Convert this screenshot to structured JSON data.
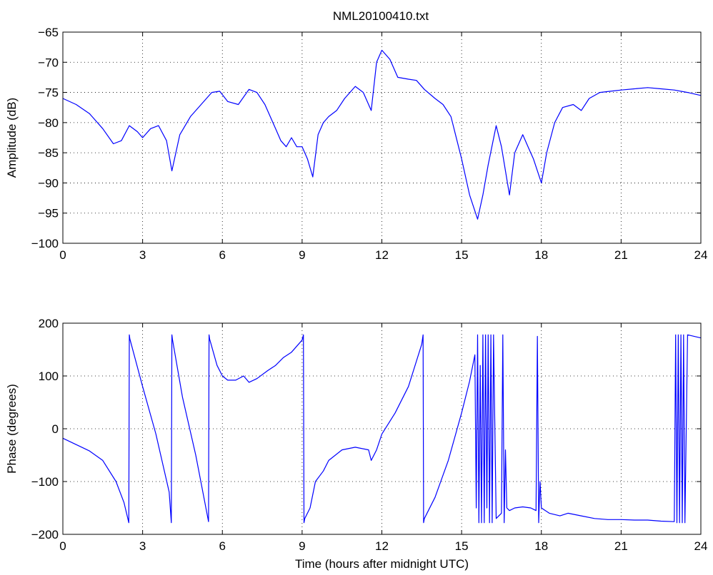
{
  "chart_data": [
    {
      "type": "line",
      "title": "NML20100410.txt",
      "xlabel": "",
      "ylabel": "Amplitude (dB)",
      "xlim": [
        0,
        24
      ],
      "ylim": [
        -100,
        -65
      ],
      "xticks": [
        "0",
        "3",
        "6",
        "9",
        "12",
        "15",
        "18",
        "21",
        "24"
      ],
      "yticks": [
        "-100",
        "-95",
        "-90",
        "-85",
        "-80",
        "-75",
        "-70",
        "-65"
      ],
      "grid": true,
      "line_color": "#0000ff",
      "series": [
        {
          "x": [
            0,
            0.5,
            1.0,
            1.5,
            1.9,
            2.2,
            2.5,
            2.8,
            3.0,
            3.3,
            3.6,
            3.9,
            4.1,
            4.4,
            4.8,
            5.2,
            5.6,
            5.9,
            6.2,
            6.6,
            7.0,
            7.3,
            7.6,
            8.0,
            8.2,
            8.4,
            8.6,
            8.8,
            9.0,
            9.2,
            9.4,
            9.6,
            9.8,
            10.0,
            10.3,
            10.6,
            11.0,
            11.3,
            11.6,
            11.8,
            12.0,
            12.3,
            12.6,
            13.0,
            13.3,
            13.6,
            14.0,
            14.3,
            14.6,
            15.0,
            15.3,
            15.6,
            15.8,
            16.0,
            16.3,
            16.5,
            16.8,
            17.0,
            17.3,
            17.5,
            17.7,
            18.0,
            18.2,
            18.5,
            18.8,
            19.2,
            19.5,
            19.8,
            20.2,
            20.6,
            21.0,
            21.5,
            22.0,
            22.5,
            23.0,
            23.5,
            24.0
          ],
          "y": [
            -76,
            -77,
            -78.5,
            -81,
            -83.5,
            -83,
            -80.5,
            -81.5,
            -82.5,
            -81,
            -80.5,
            -83,
            -88,
            -82,
            -79,
            -77,
            -75,
            -74.8,
            -76.5,
            -77,
            -74.5,
            -75,
            -77,
            -81,
            -83,
            -84,
            -82.5,
            -84,
            -84,
            -86,
            -89,
            -82,
            -80,
            -79,
            -78,
            -76,
            -74,
            -75,
            -78,
            -70,
            -68,
            -69.5,
            -72.5,
            -72.8,
            -73,
            -74.5,
            -76,
            -77,
            -79,
            -86,
            -92,
            -96,
            -92,
            -87,
            -80.5,
            -84,
            -92,
            -85,
            -82,
            -84,
            -86,
            -90,
            -85,
            -80,
            -77.5,
            -77,
            -78,
            -76,
            -75,
            -74.8,
            -74.6,
            -74.4,
            -74.2,
            -74.4,
            -74.6,
            -75,
            -75.5
          ]
        }
      ]
    },
    {
      "type": "line",
      "title": "",
      "xlabel": "Time (hours after midnight UTC)",
      "ylabel": "Phase (degrees)",
      "xlim": [
        0,
        24
      ],
      "ylim": [
        -200,
        200
      ],
      "xticks": [
        "0",
        "3",
        "6",
        "9",
        "12",
        "15",
        "18",
        "21",
        "24"
      ],
      "yticks": [
        "-200",
        "-100",
        "0",
        "100",
        "200"
      ],
      "grid": true,
      "line_color": "#0000ff",
      "series": [
        {
          "x": [
            0,
            0.5,
            1.0,
            1.5,
            2.0,
            2.3,
            2.48,
            2.5,
            2.52,
            3.0,
            3.5,
            4.0,
            4.08,
            4.1,
            4.12,
            4.5,
            5.0,
            5.48,
            5.5,
            5.52,
            5.8,
            6.0,
            6.2,
            6.5,
            6.8,
            7.0,
            7.3,
            7.7,
            8.0,
            8.3,
            8.6,
            9.0,
            9.05,
            9.07,
            9.1,
            9.3,
            9.5,
            9.8,
            10.0,
            10.5,
            11.0,
            11.5,
            11.6,
            11.8,
            12.0,
            12.5,
            13.0,
            13.5,
            13.55,
            13.57,
            13.6,
            14.0,
            14.5,
            15.0,
            15.3,
            15.5,
            15.55,
            15.6,
            15.65,
            15.7,
            15.75,
            15.8,
            15.85,
            15.9,
            15.95,
            16.0,
            16.05,
            16.1,
            16.15,
            16.2,
            16.3,
            16.4,
            16.5,
            16.55,
            16.6,
            16.65,
            16.7,
            16.8,
            17.0,
            17.3,
            17.6,
            17.8,
            17.85,
            17.9,
            17.95,
            18.0,
            18.3,
            18.7,
            19.0,
            19.5,
            20.0,
            20.5,
            21.0,
            21.5,
            22.0,
            22.5,
            23.0,
            23.05,
            23.1,
            23.15,
            23.2,
            23.25,
            23.3,
            23.35,
            23.4,
            23.5,
            24.0
          ],
          "y": [
            -18,
            -30,
            -42,
            -60,
            -100,
            -140,
            -178,
            178,
            170,
            80,
            -10,
            -120,
            -178,
            178,
            170,
            60,
            -50,
            -176,
            178,
            170,
            120,
            100,
            92,
            92,
            100,
            88,
            95,
            110,
            120,
            135,
            145,
            168,
            178,
            -178,
            -170,
            -150,
            -100,
            -80,
            -60,
            -40,
            -35,
            -40,
            -60,
            -40,
            -10,
            30,
            80,
            160,
            178,
            -178,
            -170,
            -130,
            -60,
            30,
            90,
            140,
            -150,
            178,
            -178,
            120,
            -178,
            178,
            -178,
            178,
            -150,
            178,
            -178,
            178,
            -178,
            178,
            -170,
            -165,
            -160,
            178,
            -178,
            -40,
            -150,
            -155,
            -150,
            -148,
            -150,
            -155,
            175,
            -178,
            -100,
            -150,
            -160,
            -165,
            -160,
            -165,
            -170,
            -172,
            -172,
            -173,
            -173,
            -175,
            -176,
            178,
            -178,
            178,
            -178,
            178,
            -178,
            178,
            -178,
            178,
            172
          ]
        }
      ]
    }
  ]
}
